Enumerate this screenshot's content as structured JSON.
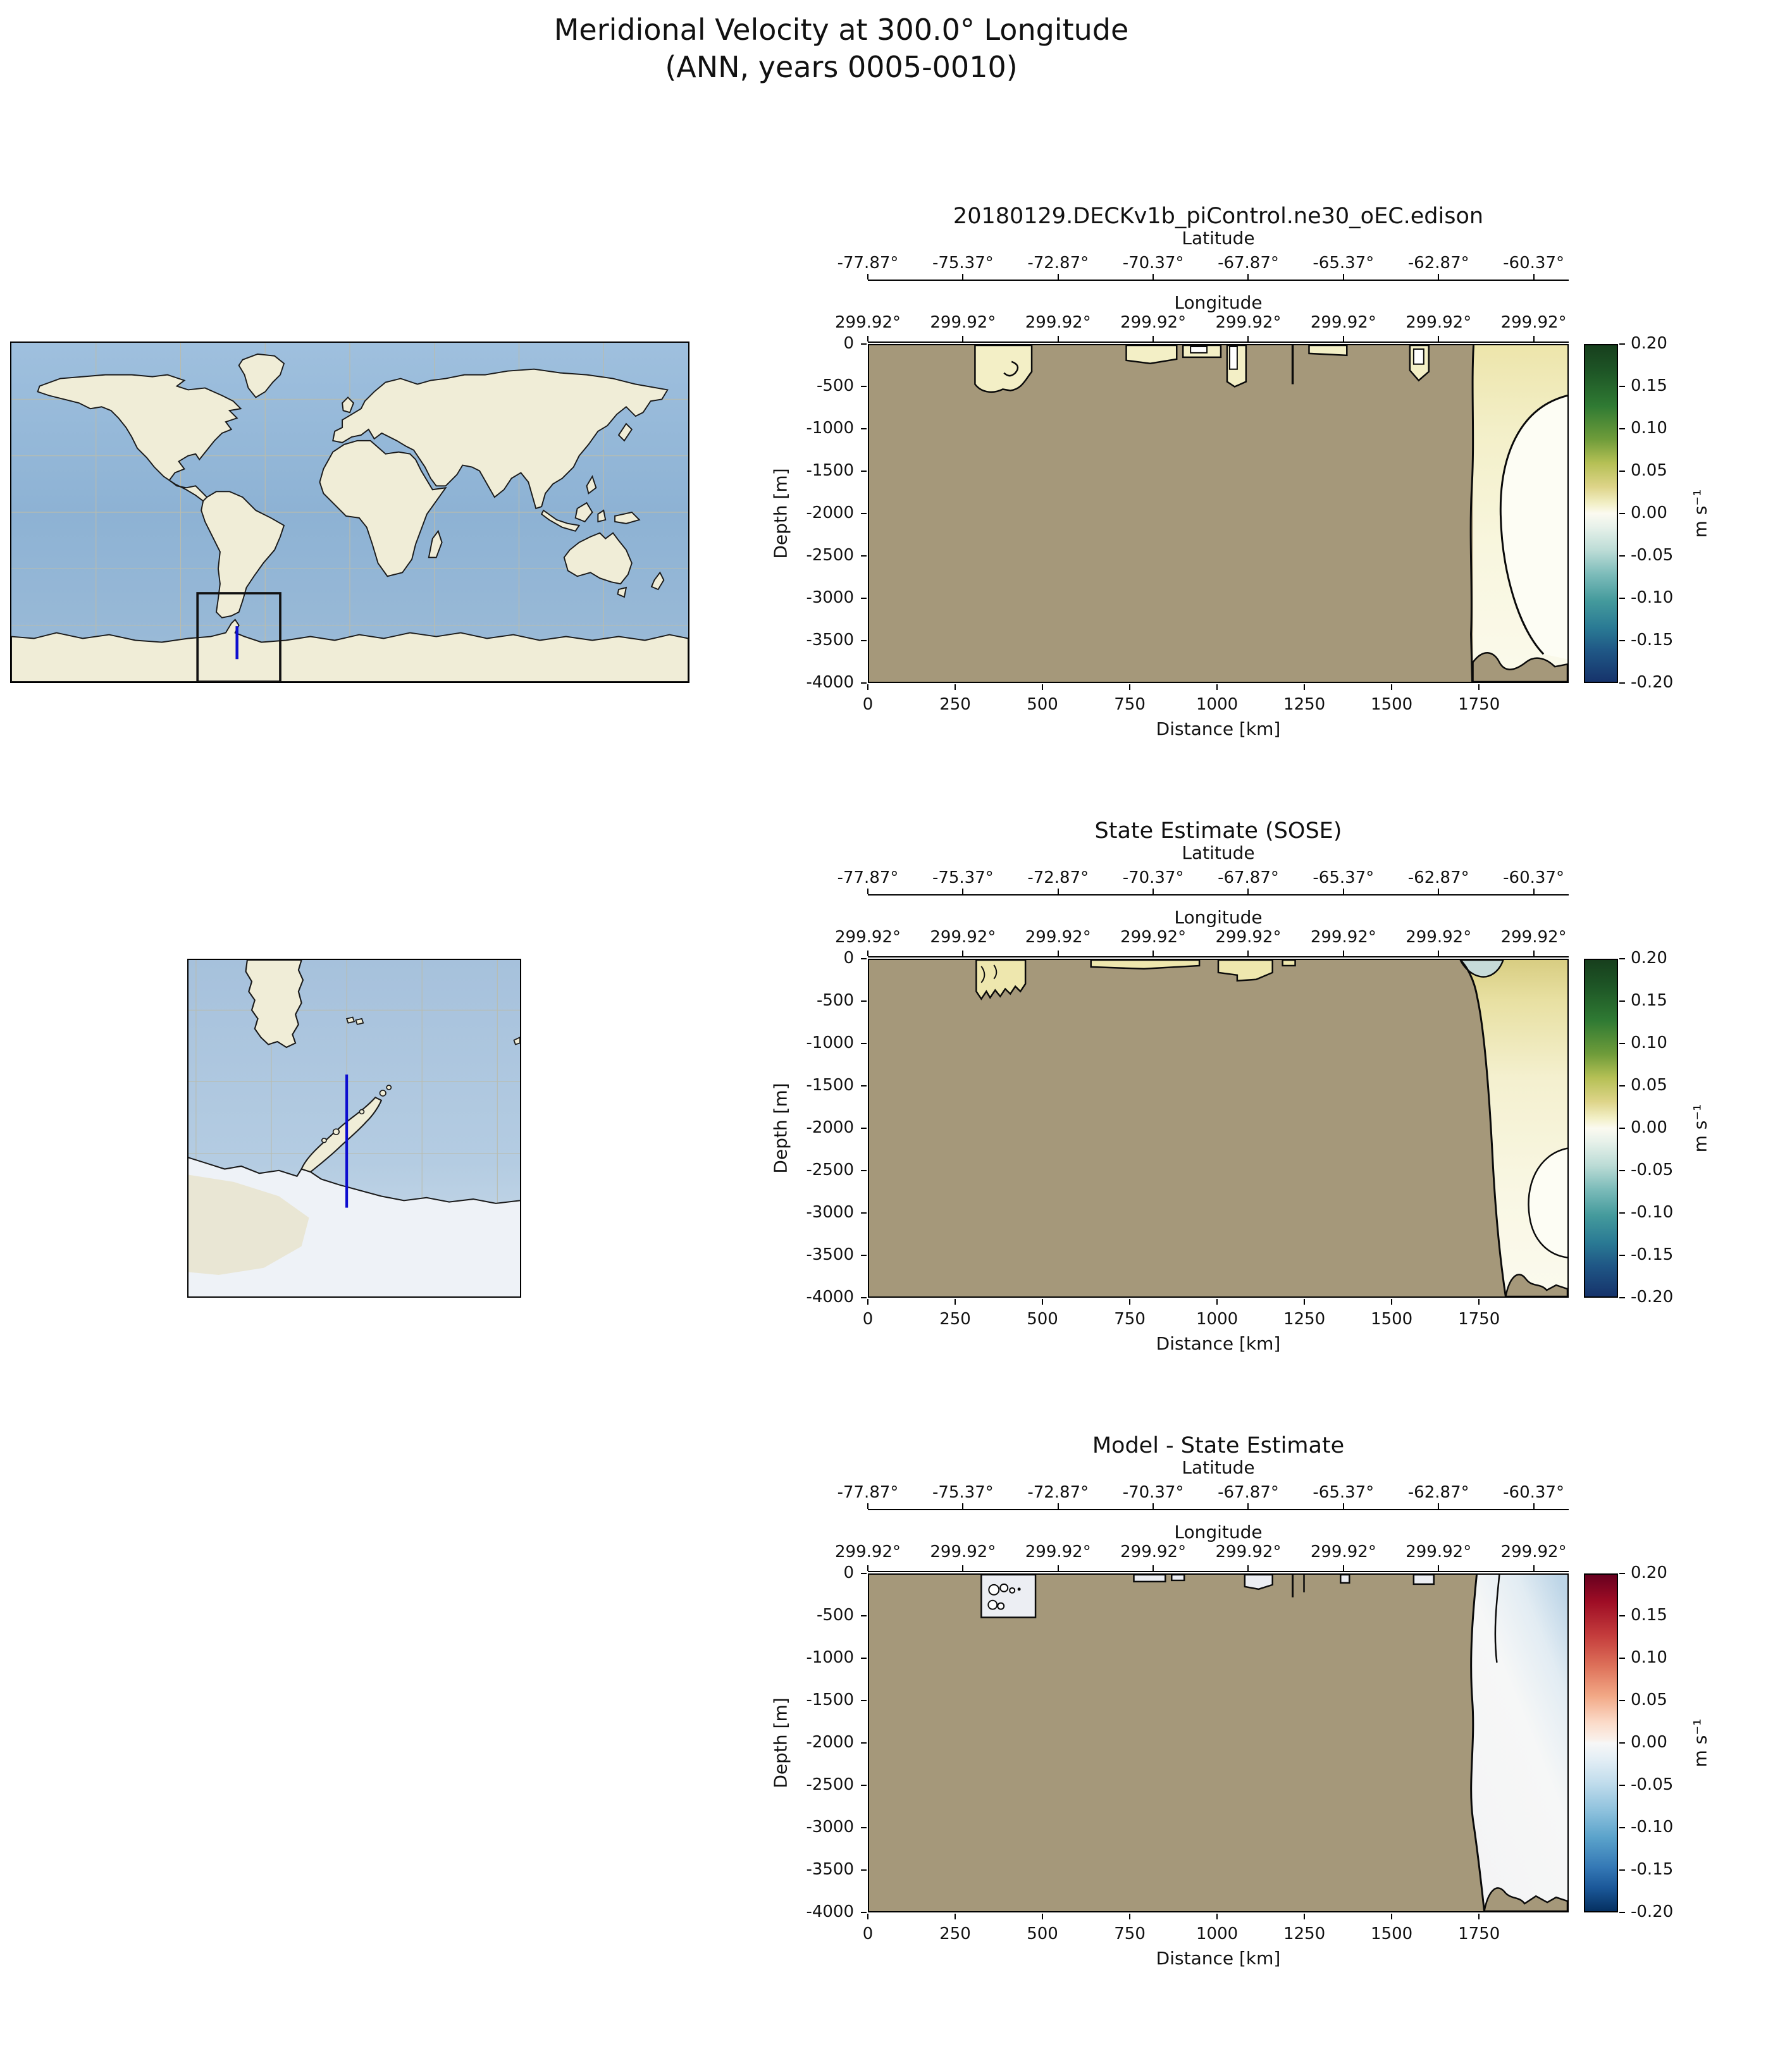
{
  "figure_title": {
    "line1": "Meridional Velocity at 300.0° Longitude",
    "line2": "(ANN, years 0005-0010)"
  },
  "labels": {
    "latitude": "Latitude",
    "longitude": "Longitude",
    "depth": "Depth [m]",
    "distance": "Distance [km]",
    "velocity_units": "m s⁻¹"
  },
  "panels": [
    {
      "title": "20180129.DECKv1b_piControl.ne30_oEC.edison"
    },
    {
      "title": "State Estimate (SOSE)"
    },
    {
      "title": "Model - State Estimate"
    }
  ],
  "ticks": {
    "latitude": [
      "-77.87°",
      "-75.37°",
      "-72.87°",
      "-70.37°",
      "-67.87°",
      "-65.37°",
      "-62.87°",
      "-60.37°"
    ],
    "longitude": [
      "299.92°",
      "299.92°",
      "299.92°",
      "299.92°",
      "299.92°",
      "299.92°",
      "299.92°",
      "299.92°"
    ],
    "depth": [
      "0",
      "-500",
      "-1000",
      "-1500",
      "-2000",
      "-2500",
      "-3000",
      "-3500",
      "-4000"
    ],
    "distance": [
      "0",
      "250",
      "500",
      "750",
      "1000",
      "1250",
      "1500",
      "1750"
    ],
    "colorbar": [
      "0.20",
      "0.15",
      "0.10",
      "0.05",
      "0.00",
      "-0.05",
      "-0.10",
      "-0.15",
      "-0.20"
    ]
  },
  "colors": {
    "land_mask": "#a5987a",
    "section_line": "#0d0dcf",
    "model_colormap_positive_extreme": "#173f1d",
    "model_colormap_negative_extreme": "#16336b",
    "diff_colormap_positive_extreme": "#67001f",
    "diff_colormap_negative_extreme": "#053061"
  },
  "chart_data": [
    {
      "type": "heatmap",
      "title": "20180129.DECKv1b_piControl.ne30_oEC.edison",
      "xlabel": "Distance [km]",
      "ylabel": "Depth [m]",
      "xlim": [
        0,
        2000
      ],
      "ylim": [
        -4000,
        0
      ],
      "x_ticks": [
        0,
        250,
        500,
        750,
        1000,
        1250,
        1500,
        1750
      ],
      "y_ticks": [
        0,
        -500,
        -1000,
        -1500,
        -2000,
        -2500,
        -3000,
        -3500,
        -4000
      ],
      "secondary_x_axes": {
        "latitude_deg": [
          -77.87,
          -75.37,
          -72.87,
          -70.37,
          -67.87,
          -65.37,
          -62.87,
          -60.37
        ],
        "longitude_deg": [
          299.92,
          299.92,
          299.92,
          299.92,
          299.92,
          299.92,
          299.92,
          299.92
        ]
      },
      "value_units": "m s⁻¹",
      "value_range": [
        -0.2,
        0.2
      ],
      "colorbar_ticks": [
        0.2,
        0.15,
        0.1,
        0.05,
        0.0,
        -0.05,
        -0.1,
        -0.15,
        -0.2
      ],
      "colormap": "diverging green-yellow / white / teal-navy",
      "masked_region": "brown fill where bathymetry/land masks the section (most of 0-1750 km below ~-100 m)",
      "visible_signal": "weak positive meridional velocity (~0 to +0.05 m s⁻¹) in shallow surface pockets between ~150 and ~1600 km and through the full-depth open channel beyond ~1750 km; near-zero core at depth in the channel"
    },
    {
      "type": "heatmap",
      "title": "State Estimate (SOSE)",
      "xlabel": "Distance [km]",
      "ylabel": "Depth [m]",
      "xlim": [
        0,
        2000
      ],
      "ylim": [
        -4000,
        0
      ],
      "x_ticks": [
        0,
        250,
        500,
        750,
        1000,
        1250,
        1500,
        1750
      ],
      "y_ticks": [
        0,
        -500,
        -1000,
        -1500,
        -2000,
        -2500,
        -3000,
        -3500,
        -4000
      ],
      "secondary_x_axes": {
        "latitude_deg": [
          -77.87,
          -75.37,
          -72.87,
          -70.37,
          -67.87,
          -65.37,
          -62.87,
          -60.37
        ],
        "longitude_deg": [
          299.92,
          299.92,
          299.92,
          299.92,
          299.92,
          299.92,
          299.92,
          299.92
        ]
      },
      "value_units": "m s⁻¹",
      "value_range": [
        -0.2,
        0.2
      ],
      "colorbar_ticks": [
        0.2,
        0.15,
        0.1,
        0.05,
        0.0,
        -0.05,
        -0.1,
        -0.15,
        -0.2
      ],
      "colormap": "diverging green-yellow / white / teal-navy",
      "masked_region": "brown fill where bathymetry/land masks the section",
      "visible_signal": "positive velocities up to ~+0.05-0.1 m s⁻¹ at the surface of the open channel (khaki), small near-zero/negative patch (pale blue) at the channel's surface edge, pale near-zero values at depth"
    },
    {
      "type": "heatmap",
      "title": "Model - State Estimate",
      "xlabel": "Distance [km]",
      "ylabel": "Depth [m]",
      "xlim": [
        0,
        2000
      ],
      "ylim": [
        -4000,
        0
      ],
      "x_ticks": [
        0,
        250,
        500,
        750,
        1000,
        1250,
        1500,
        1750
      ],
      "y_ticks": [
        0,
        -500,
        -1000,
        -1500,
        -2000,
        -2500,
        -3000,
        -3500,
        -4000
      ],
      "secondary_x_axes": {
        "latitude_deg": [
          -77.87,
          -75.37,
          -72.87,
          -70.37,
          -67.87,
          -65.37,
          -62.87,
          -60.37
        ],
        "longitude_deg": [
          299.92,
          299.92,
          299.92,
          299.92,
          299.92,
          299.92,
          299.92,
          299.92
        ]
      },
      "value_units": "m s⁻¹",
      "value_range": [
        -0.2,
        0.2
      ],
      "colorbar_ticks": [
        0.2,
        0.15,
        0.1,
        0.05,
        0.0,
        -0.05,
        -0.1,
        -0.15,
        -0.2
      ],
      "colormap": "diverging red / white / blue",
      "masked_region": "brown fill where bathymetry/land masks the section",
      "visible_signal": "differences mostly near zero (white/pale); weak negative differences (~-0.05 m s⁻¹, light blue) near the surface of the open channel; small closed contours in the surface pocket near 300-450 km"
    }
  ],
  "insets": {
    "world_map": "global plate-carree map with black box marking the Drake Passage region and a blue line marking the 300°E section",
    "zoom_map": "regional map of southern South America, Drake Passage and the Antarctic Peninsula with the blue 300°E section line"
  }
}
